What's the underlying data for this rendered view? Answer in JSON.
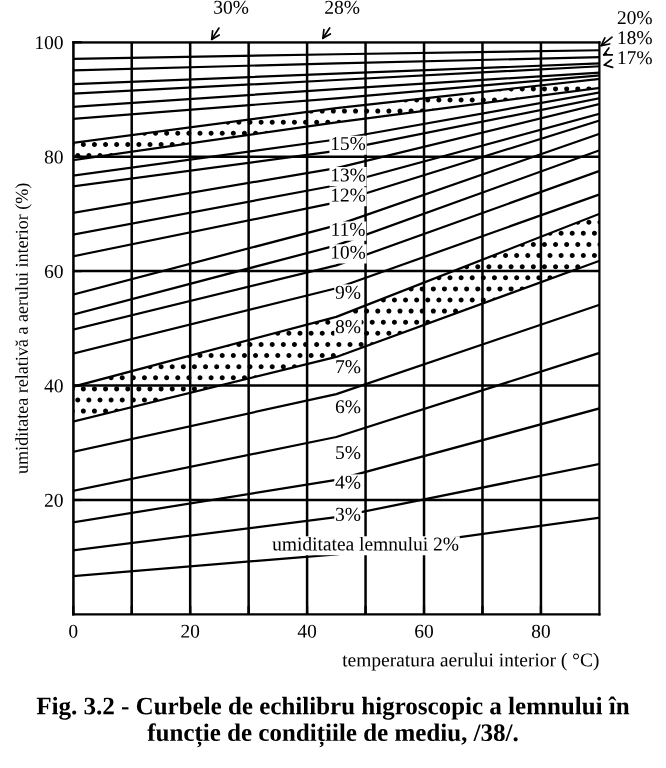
{
  "chart_data": {
    "type": "line",
    "title": "Fig. 3.2 - Curbele de echilibru higroscopic a lemnului în funcție de condițiile de mediu, /38/.",
    "xlabel": "temperatura aerului interior ( °C)",
    "ylabel": "umiditatea relativă a aerului interior (%)",
    "xlim": [
      0,
      90
    ],
    "ylim": [
      0,
      100
    ],
    "xticks": [
      0,
      {
        "value": 10,
        "label": null
      },
      20,
      {
        "value": 30,
        "label": null
      },
      40,
      {
        "value": 50,
        "label": null
      },
      60,
      {
        "value": 70,
        "label": null
      },
      80
    ],
    "yticks": [
      20,
      40,
      60,
      80,
      100
    ],
    "grid": true,
    "legend": false,
    "line_style": "solid",
    "series": [
      {
        "color": "#000000",
        "x": [
          0,
          45,
          90
        ],
        "values": [
          6.7,
          10.5,
          16.9
        ]
      },
      {
        "color": "#000000",
        "x": [
          0,
          45,
          90
        ],
        "values": [
          11.2,
          17,
          26.3
        ]
      },
      {
        "color": "#000000",
        "x": [
          0,
          45,
          90
        ],
        "values": [
          16.1,
          23.5,
          36
        ]
      },
      {
        "color": "#000000",
        "x": [
          0,
          45,
          90
        ],
        "values": [
          21.6,
          31,
          45.7
        ]
      },
      {
        "color": "#000000",
        "x": [
          0,
          45,
          90
        ],
        "values": [
          28.4,
          38.5,
          54.1
        ]
      },
      {
        "color": "#000000",
        "x": [
          0,
          45,
          90
        ],
        "values": [
          33.7,
          45,
          61.8
        ]
      },
      {
        "color": "#000000",
        "x": [
          0,
          45,
          90
        ],
        "values": [
          39.8,
          52,
          70
        ]
      },
      {
        "color": "#000000",
        "x": [
          0,
          45,
          90
        ],
        "values": [
          45.6,
          57,
          73.4
        ]
      },
      {
        "color": "#000000",
        "x": [
          0,
          45,
          90
        ],
        "values": [
          49.8,
          61,
          77.5
        ]
      },
      {
        "color": "#000000",
        "x": [
          0,
          45,
          90
        ],
        "values": [
          52.4,
          64.5,
          81.1
        ]
      },
      {
        "color": "#000000",
        "x": [
          0,
          45,
          90
        ],
        "values": [
          55.9,
          68,
          84
        ]
      },
      {
        "color": "#000000",
        "x": [
          0,
          45,
          90
        ],
        "values": [
          62.6,
          72,
          86.3
        ]
      },
      {
        "color": "#000000",
        "x": [
          0,
          45,
          90
        ],
        "values": [
          66.4,
          75,
          87.5
        ]
      },
      {
        "color": "#000000",
        "x": [
          0,
          45,
          90
        ],
        "values": [
          70.2,
          78,
          89.2
        ]
      },
      {
        "color": "#000000",
        "x": [
          0,
          45,
          90
        ],
        "values": [
          74.8,
          81,
          90.2
        ]
      },
      {
        "color": "#000000",
        "x": [
          0,
          45,
          90
        ],
        "values": [
          76.7,
          83,
          91.2
        ]
      },
      {
        "color": "#000000",
        "x": [
          0,
          45,
          90
        ],
        "values": [
          79.4,
          86,
          92
        ]
      },
      {
        "color": "#000000",
        "x": [
          0,
          45,
          90
        ],
        "values": [
          82.4,
          88.5,
          93.6
        ]
      },
      {
        "color": "#000000",
        "x": [
          0,
          45,
          90
        ],
        "values": [
          86.6,
          90.2,
          94.2
        ]
      },
      {
        "color": "#000000",
        "x": [
          0,
          45,
          90
        ],
        "values": [
          88.7,
          91.8,
          94.7
        ]
      },
      {
        "color": "#000000",
        "x": [
          0,
          45,
          90
        ],
        "values": [
          91,
          93.4,
          95.8
        ]
      },
      {
        "color": "#000000",
        "x": [
          0,
          45,
          90
        ],
        "values": [
          92.7,
          94.5,
          96.3
        ]
      },
      {
        "color": "#000000",
        "x": [
          0,
          45,
          90
        ],
        "values": [
          95.1,
          96.3,
          97.4
        ]
      },
      {
        "color": "#000000",
        "x": [
          0,
          45,
          90
        ],
        "values": [
          97.1,
          97.9,
          98.6
        ]
      }
    ],
    "annotations": [
      {
        "text": "umiditatea lemnului 2%",
        "x": 50,
        "y": 12
      },
      {
        "text": "3%",
        "x": 47,
        "y": 17.2
      },
      {
        "text": "4%",
        "x": 47,
        "y": 22.8
      },
      {
        "text": "5%",
        "x": 47,
        "y": 28
      },
      {
        "text": "6%",
        "x": 47,
        "y": 36
      },
      {
        "text": "7%",
        "x": 47,
        "y": 43
      },
      {
        "text": "8%",
        "x": 47,
        "y": 50
      },
      {
        "text": "9%",
        "x": 47,
        "y": 56
      },
      {
        "text": "10%",
        "x": 47,
        "y": 63
      },
      {
        "text": "11%",
        "x": 47,
        "y": 67
      },
      {
        "text": "12%",
        "x": 47,
        "y": 73
      },
      {
        "text": "13%",
        "x": 47,
        "y": 76.5
      },
      {
        "text": "15%",
        "x": 47,
        "y": 82
      },
      {
        "text": "30%",
        "x": 23,
        "y": 99.4
      },
      {
        "text": "28%",
        "x": 42,
        "y": 99.6
      },
      {
        "text": "20%",
        "x": 89.3,
        "y": 98.6
      },
      {
        "text": "18%",
        "x": 89.6,
        "y": 97.2
      },
      {
        "text": "17%",
        "x": 89.6,
        "y": 95.8
      }
    ]
  }
}
